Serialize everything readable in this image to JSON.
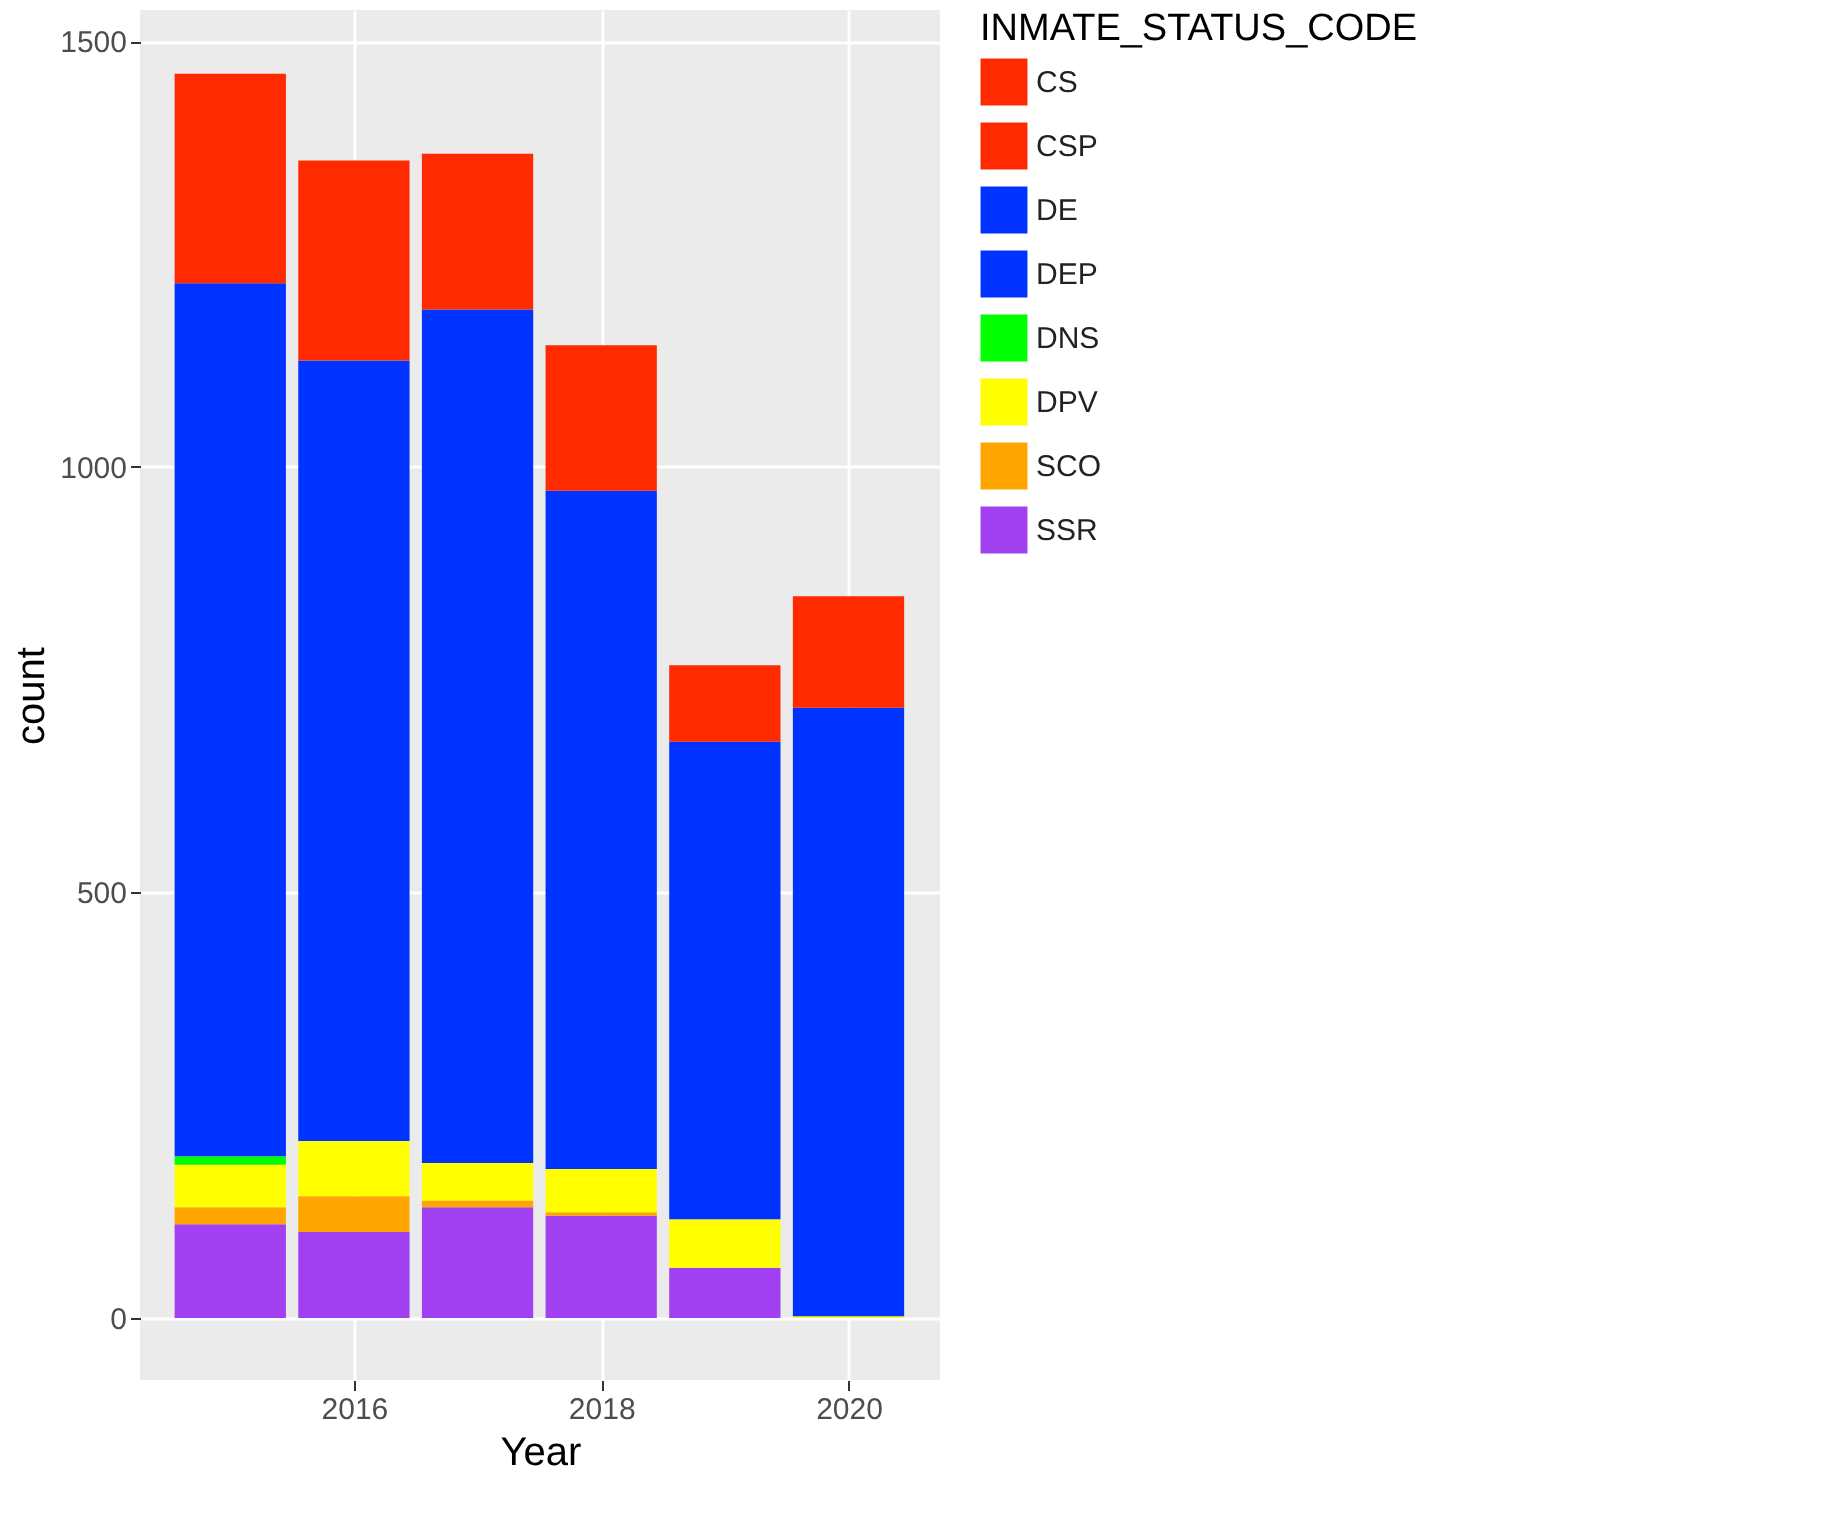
{
  "chart_data": {
    "type": "bar",
    "stacked": true,
    "xlabel": "Year",
    "ylabel": "count",
    "legend_title": "INMATE_STATUS_CODE",
    "x": [
      2015,
      2016,
      2017,
      2018,
      2019,
      2020
    ],
    "series": [
      {
        "name": "SSR",
        "color": "#a040f0",
        "values": [
          110,
          101,
          130,
          120,
          59,
          0
        ]
      },
      {
        "name": "SCO",
        "color": "#ffa500",
        "values": [
          20,
          42,
          8,
          4,
          0,
          0
        ]
      },
      {
        "name": "DPV",
        "color": "#ffff00",
        "values": [
          50,
          65,
          44,
          51,
          57,
          2
        ]
      },
      {
        "name": "DNS",
        "color": "#00ff00",
        "values": [
          10,
          0,
          0,
          0,
          0,
          0
        ]
      },
      {
        "name": "DEP",
        "color": "#0033ff",
        "values": [
          null,
          null,
          null,
          null,
          null,
          null
        ]
      },
      {
        "name": "DE",
        "color": "#0033ff",
        "values": [
          1026,
          917,
          1003,
          797,
          561,
          715
        ]
      },
      {
        "name": "CSP",
        "color": "#ff2a00",
        "values": [
          null,
          null,
          null,
          null,
          null,
          null
        ]
      },
      {
        "name": "CS",
        "color": "#ff2a00",
        "values": [
          246,
          235,
          183,
          171,
          90,
          131
        ]
      }
    ],
    "xlim": [
      2014.27,
      2020.74
    ],
    "xticks": [
      2016,
      2018,
      2020
    ],
    "ylim": [
      -73,
      1537
    ],
    "yticks": [
      0,
      500,
      1000,
      1500
    ],
    "grid": true,
    "legend": "right"
  }
}
